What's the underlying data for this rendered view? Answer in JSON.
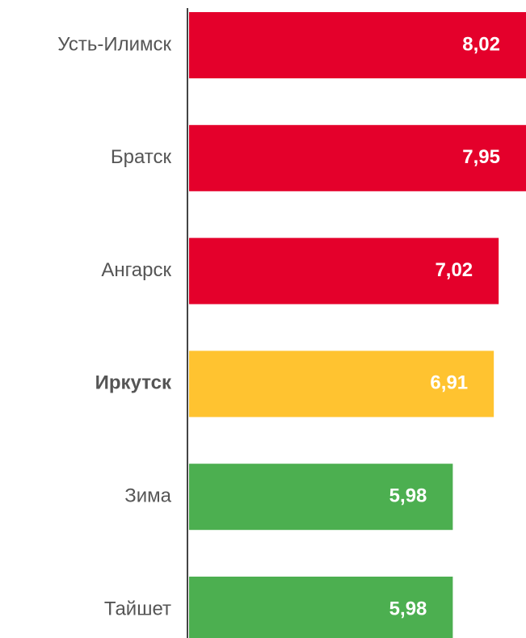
{
  "chart_data": {
    "type": "bar",
    "orientation": "horizontal",
    "categories": [
      "Усть-Илимск",
      "Братск",
      "Ангарск",
      "Иркутск",
      "Зима",
      "Тайшет"
    ],
    "values": [
      8.02,
      7.95,
      7.02,
      6.91,
      5.98,
      5.98
    ],
    "value_labels": [
      "8,02",
      "7,95",
      "7,02",
      "6,91",
      "5,98",
      "5,98"
    ],
    "colors": [
      "#e4002b",
      "#e4002b",
      "#e4002b",
      "#ffc330",
      "#4caf50",
      "#4caf50"
    ],
    "bold": [
      false,
      false,
      false,
      true,
      false,
      false
    ],
    "xlim": [
      0,
      7.64
    ]
  }
}
